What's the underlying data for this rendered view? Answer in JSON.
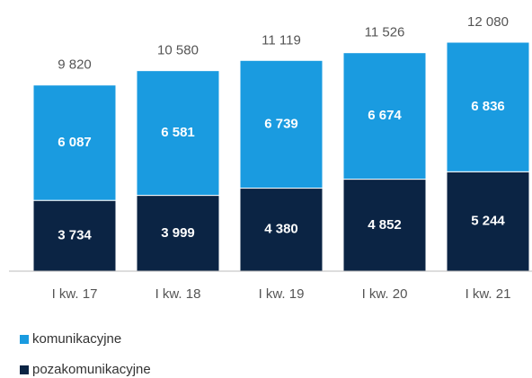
{
  "chart_data": {
    "type": "stacked_bar",
    "categories": [
      "I kw. 17",
      "I kw. 18",
      "I kw. 19",
      "I kw. 20",
      "I kw. 21"
    ],
    "series": [
      {
        "name": "komunikacyjne",
        "color": "#1a9be0",
        "values": [
          6087,
          6581,
          6739,
          6674,
          6836
        ],
        "value_labels": [
          "6 087",
          "6 581",
          "6 739",
          "6 674",
          "6 836"
        ]
      },
      {
        "name": "pozakomunikacyjne",
        "color": "#0b2444",
        "values": [
          3734,
          3999,
          4380,
          4852,
          5244
        ],
        "value_labels": [
          "3 734",
          "3 999",
          "4 380",
          "4 852",
          "5 244"
        ]
      }
    ],
    "totals": [
      9820,
      10580,
      11119,
      11526,
      12080
    ],
    "total_labels": [
      "9 820",
      "10 580",
      "11 119",
      "11 526",
      "12 080"
    ]
  }
}
